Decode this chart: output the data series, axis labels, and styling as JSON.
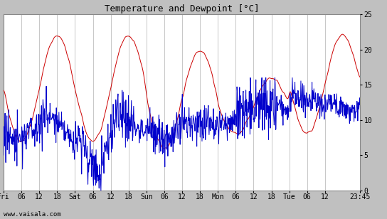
{
  "title": "Temperature and Dewpoint [°C]",
  "ylim": [
    0,
    25
  ],
  "yticks": [
    0,
    5,
    10,
    15,
    20,
    25
  ],
  "temp_color": "#cc0000",
  "dewp_color": "#0000cc",
  "line_width": 0.7,
  "background_color": "#ffffff",
  "outer_bg": "#c0c0c0",
  "grid_color": "#b0b0b0",
  "watermark": "www.vaisala.com",
  "xtick_labels": [
    "Fri",
    "06",
    "12",
    "18",
    "Sat",
    "06",
    "12",
    "18",
    "Sun",
    "06",
    "12",
    "18",
    "Mon",
    "06",
    "12",
    "18",
    "Tue",
    "06",
    "12",
    "23:45"
  ],
  "xtick_positions": [
    0,
    6,
    12,
    18,
    24,
    30,
    36,
    42,
    48,
    54,
    60,
    66,
    72,
    78,
    84,
    90,
    96,
    102,
    108,
    119.75
  ],
  "xlim": [
    0,
    119.75
  ]
}
